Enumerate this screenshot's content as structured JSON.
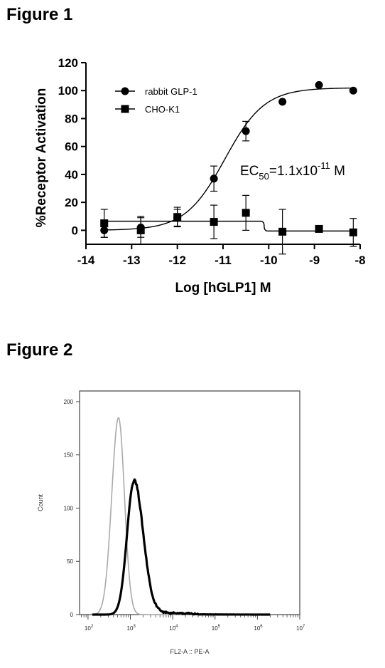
{
  "figures": {
    "fig1_title": "Figure 1",
    "fig2_title": "Figure 2"
  },
  "chart_data": [
    {
      "type": "line",
      "xlabel": "Log [hGLP1] M",
      "ylabel": "%Receptor Activation",
      "xlim": [
        -14,
        -8
      ],
      "ylim": [
        -10,
        120
      ],
      "x_ticks": [
        -14,
        -13,
        -12,
        -11,
        -10,
        -9,
        -8
      ],
      "y_ticks": [
        0,
        20,
        40,
        60,
        80,
        100,
        120
      ],
      "legend_position": "top-left",
      "annotation": {
        "base": "EC",
        "sub": "50",
        "mid": "=1.1x10",
        "sup": "-11",
        "tail": " M"
      },
      "fit": {
        "bottom": 0,
        "top": 102,
        "log_ec50": -10.96,
        "hill": 1
      },
      "series": [
        {
          "name": "rabbit GLP-1",
          "marker": "circle",
          "x": [
            -13.6,
            -12.8,
            -12.0,
            -11.2,
            -10.5,
            -9.7,
            -8.9,
            -8.15
          ],
          "y": [
            0,
            2,
            9,
            37,
            71,
            92,
            104,
            100
          ],
          "err": [
            5,
            7,
            6,
            9,
            7,
            0,
            0,
            0
          ]
        },
        {
          "name": "CHO-K1",
          "marker": "square",
          "x": [
            -13.6,
            -12.8,
            -12.0,
            -11.2,
            -10.5,
            -9.7,
            -8.9,
            -8.15
          ],
          "y": [
            5,
            0,
            9.5,
            6,
            12.5,
            -1,
            1,
            -1.5
          ],
          "err": [
            10,
            10,
            7,
            12,
            12.5,
            16,
            0,
            10
          ],
          "step_levels": [
            6.5,
            -0.5
          ],
          "step_x": -10.1
        }
      ]
    },
    {
      "type": "area",
      "xlabel": "FL2-A :: PE-A",
      "ylabel": "Count",
      "x_scale": "log",
      "xlim_log": [
        1.8,
        7.0
      ],
      "ylim": [
        0,
        210
      ],
      "x_ticks_log": [
        2,
        3,
        4,
        5,
        6,
        7
      ],
      "y_ticks": [
        0,
        50,
        100,
        150,
        200
      ],
      "series": [
        {
          "name": "",
          "color": "#aaaaaa",
          "peak_log": 2.72,
          "peak_count": 185,
          "sigma_left": 0.16,
          "sigma_right": 0.14
        },
        {
          "name": "",
          "color": "#000000",
          "peak_log": 3.08,
          "peak_count": 124,
          "sigma_left": 0.16,
          "sigma_right": 0.22
        }
      ]
    }
  ]
}
